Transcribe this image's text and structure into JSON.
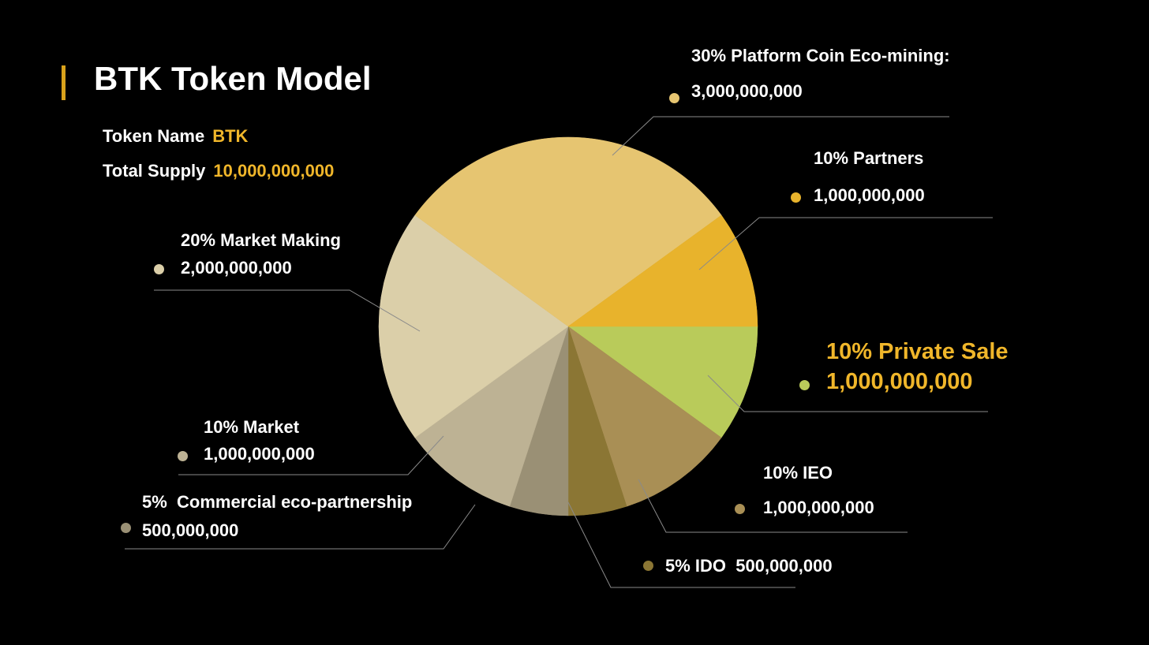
{
  "header": {
    "title": "BTK Token Model",
    "token_name_label": "Token Name",
    "token_name_value": "BTK",
    "total_supply_label": "Total Supply",
    "total_supply_value": "10,000,000,000"
  },
  "colors": {
    "background": "#000000",
    "accent": "#f0b62a"
  },
  "chart_data": {
    "type": "pie",
    "slices": [
      {
        "name": "Private Sale",
        "percent": 10,
        "amount": 1000000000,
        "color": "#b9cb5a"
      },
      {
        "name": "IEO",
        "percent": 10,
        "amount": 1000000000,
        "color": "#a98f55"
      },
      {
        "name": "IDO",
        "percent": 5,
        "amount": 500000000,
        "color": "#8b7634"
      },
      {
        "name": "Commercial eco-partnership",
        "percent": 5,
        "amount": 500000000,
        "color": "#9a9075"
      },
      {
        "name": "Market",
        "percent": 10,
        "amount": 1000000000,
        "color": "#bdb294"
      },
      {
        "name": "Market Making",
        "percent": 20,
        "amount": 2000000000,
        "color": "#dbcfa9"
      },
      {
        "name": "Platform Coin Eco-mining",
        "percent": 30,
        "amount": 3000000000,
        "color": "#e6c571"
      },
      {
        "name": "Partners",
        "percent": 10,
        "amount": 1000000000,
        "color": "#e8b32c"
      }
    ]
  },
  "labels": {
    "platform": {
      "line1": "30% Platform Coin Eco-mining:",
      "line2": "3,000,000,000"
    },
    "partners": {
      "line1": "10% Partners",
      "line2": "1,000,000,000"
    },
    "private_sale": {
      "line1": "10% Private Sale",
      "line2": "1,000,000,000"
    },
    "ieo": {
      "line1": "10% IEO",
      "line2": "1,000,000,000"
    },
    "ido": {
      "line1": "5% IDO  500,000,000"
    },
    "commercial": {
      "line1": "5%  Commercial eco-partnership",
      "line2": "500,000,000"
    },
    "market": {
      "line1": "10% Market",
      "line2": "1,000,000,000"
    },
    "market_making": {
      "line1": "20% Market Making",
      "line2": "2,000,000,000"
    }
  }
}
